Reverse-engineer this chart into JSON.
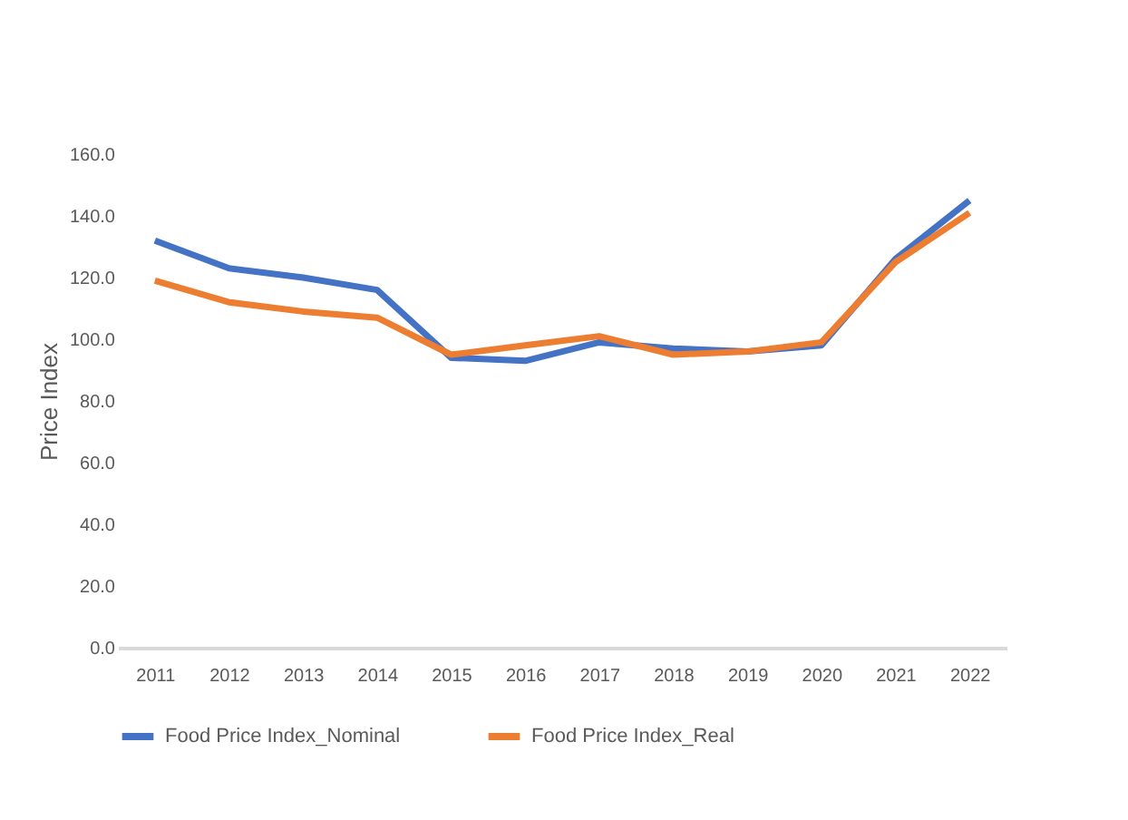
{
  "chart_data": {
    "type": "line",
    "ylabel": "Price Index",
    "categories": [
      "2011",
      "2012",
      "2013",
      "2014",
      "2015",
      "2016",
      "2017",
      "2018",
      "2019",
      "2020",
      "2021",
      "2022"
    ],
    "series": [
      {
        "name": "Food Price Index_Nominal",
        "color": "#4472c4",
        "values": [
          132,
          123,
          120,
          116,
          94,
          93,
          99,
          97,
          96,
          98,
          126,
          145
        ]
      },
      {
        "name": "Food Price Index_Real",
        "color": "#ed7d31",
        "values": [
          119,
          112,
          109,
          107,
          95,
          98,
          101,
          95,
          96,
          99,
          125,
          141
        ]
      }
    ],
    "ylim": [
      0,
      160
    ],
    "yticks": [
      {
        "value": 0,
        "label": "0.0"
      },
      {
        "value": 20,
        "label": "20.0"
      },
      {
        "value": 40,
        "label": "40.0"
      },
      {
        "value": 60,
        "label": "60.0"
      },
      {
        "value": 80,
        "label": "80.0"
      },
      {
        "value": 100,
        "label": "100.0"
      },
      {
        "value": 120,
        "label": "120.0"
      },
      {
        "value": 140,
        "label": "140.0"
      },
      {
        "value": 160,
        "label": "160.0"
      }
    ],
    "grid": false,
    "legend": "bottom",
    "marker": "none",
    "line_style": "solid"
  }
}
